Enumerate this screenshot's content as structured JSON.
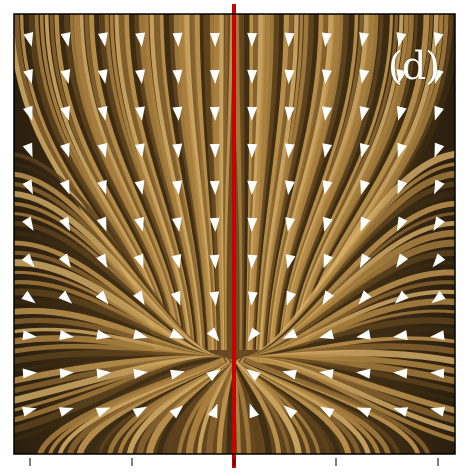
{
  "figure": {
    "panel_label": "(d)",
    "colors": {
      "background_dark": "#3a2a14",
      "streak_light": "#c79b52",
      "streak_mid": "#8a6530",
      "streak_dark": "#1c140a",
      "arrow": "#ffffff",
      "divider_line": "#cc0000",
      "frame": "#000000"
    },
    "description_icons": [
      "arrow-icon"
    ]
  }
}
